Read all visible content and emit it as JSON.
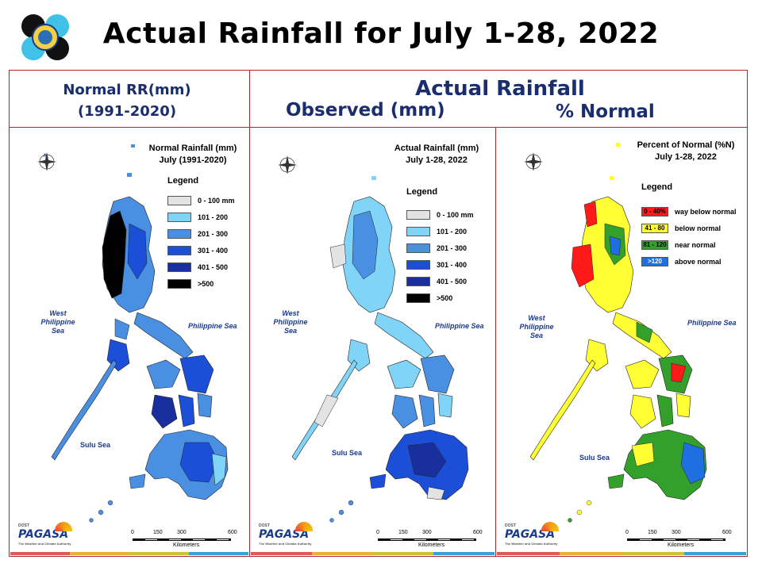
{
  "title": "Actual Rainfall for July 1-28, 2022",
  "header": {
    "normal_line1": "Normal RR(mm)",
    "normal_line2": "(1991-2020)",
    "actual": "Actual Rainfall",
    "observed": "Observed (mm)",
    "percent": "% Normal"
  },
  "panels": [
    {
      "title_line1": "Normal Rainfall (mm)",
      "title_line2": "July (1991-2020)",
      "legend_title": "Legend",
      "legend": [
        {
          "label": "0 - 100 mm",
          "color": "#e3e3e3"
        },
        {
          "label": "101 - 200",
          "color": "#7fd4f7"
        },
        {
          "label": "201 - 300",
          "color": "#4a90e2"
        },
        {
          "label": "301 - 400",
          "color": "#1c4fd8"
        },
        {
          "label": "401 - 500",
          "color": "#1a2f9e"
        },
        {
          "label": ">500",
          "color": "#000000"
        }
      ]
    },
    {
      "title_line1": "Actual Rainfall (mm)",
      "title_line2": "July 1-28, 2022",
      "legend_title": "Legend",
      "legend": [
        {
          "label": "0 - 100 mm",
          "color": "#e3e3e3"
        },
        {
          "label": "101 - 200",
          "color": "#7fd4f7"
        },
        {
          "label": "201 - 300",
          "color": "#4a90e2"
        },
        {
          "label": "301 - 400",
          "color": "#1c4fd8"
        },
        {
          "label": "401 - 500",
          "color": "#1a2f9e"
        },
        {
          "label": ">500",
          "color": "#000000"
        }
      ]
    },
    {
      "title_line1": "Percent of Normal (%N)",
      "title_line2": "July 1-28, 2022",
      "legend_title": "Legend",
      "legend": [
        {
          "swatch": "0 - 40%",
          "label": "way below normal",
          "color": "#ff1a1a"
        },
        {
          "swatch": "41 - 80",
          "label": "below normal",
          "color": "#ffff33"
        },
        {
          "swatch": "81 - 120",
          "label": "near normal",
          "color": "#33a02c"
        },
        {
          "swatch": ">120",
          "label": "above normal",
          "color": "#1f6fe0"
        }
      ]
    }
  ],
  "map_labels": {
    "west_sea_1": "West",
    "west_sea_2": "Philippine Sea",
    "philippine_sea": "Philippine Sea",
    "sulu_sea": "Sulu Sea",
    "compass_n": "N",
    "compass_s": "S",
    "compass_e": "E",
    "compass_w": "W"
  },
  "scale": {
    "ticks": [
      "0",
      "150",
      "300",
      "600"
    ],
    "unit": "Kilometers"
  },
  "branding": {
    "dost": "DOST",
    "name": "PAGASA",
    "tagline": "The Weather and Climate Authority"
  },
  "colorbar": [
    "#e05a5a",
    "#e8b23a",
    "#c9c43a",
    "#3aa1d6"
  ]
}
